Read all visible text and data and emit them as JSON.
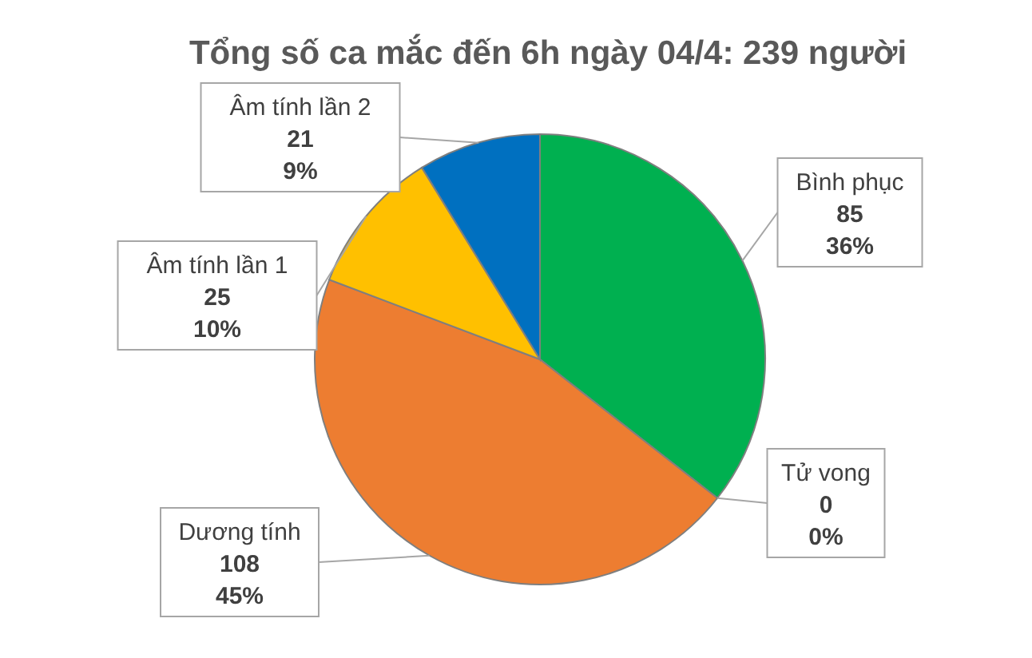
{
  "chart_data": {
    "type": "pie",
    "title": "Tổng số ca mắc đến 6h ngày 04/4: 239 người",
    "categories": [
      "Bình phục",
      "Tử vong",
      "Dương tính",
      "Âm tính lần 1",
      "Âm tính lần 2"
    ],
    "values": [
      85,
      0,
      108,
      25,
      21
    ],
    "colors": [
      "#00b050",
      "#7f7f7f",
      "#ed7d31",
      "#ffc000",
      "#0070c0"
    ],
    "value_labels": [
      "85\n36%",
      "0\n0%",
      "108\n45%",
      "25\n10%",
      "21\n9%"
    ]
  }
}
